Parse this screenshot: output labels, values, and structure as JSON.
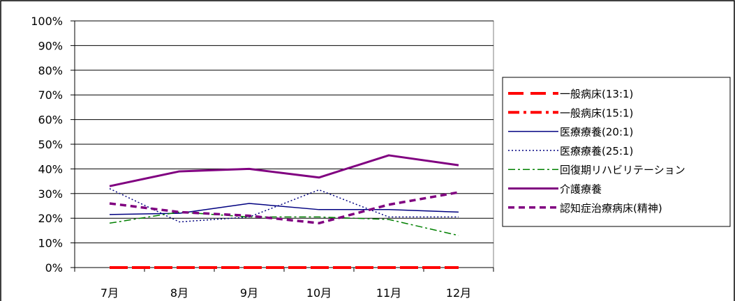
{
  "chart_data": {
    "type": "line",
    "categories": [
      "7月",
      "8月",
      "9月",
      "10月",
      "11月",
      "12月"
    ],
    "ylim": [
      0,
      100
    ],
    "ytick_labels": [
      "0%",
      "10%",
      "20%",
      "30%",
      "40%",
      "50%",
      "60%",
      "70%",
      "80%",
      "90%",
      "100%"
    ],
    "grid": true,
    "legend_position": "right",
    "series": [
      {
        "name": "一般病床(13:1)",
        "values": [
          0,
          0,
          0,
          0,
          0,
          0
        ],
        "color": "#ff0000",
        "style": "long-dash",
        "width": 4
      },
      {
        "name": "一般病床(15:1)",
        "values": [
          0,
          0,
          0,
          0,
          0,
          0
        ],
        "color": "#ff0000",
        "style": "dash-dot",
        "width": 4
      },
      {
        "name": "医療療養(20:1)",
        "values": [
          21.5,
          22,
          26,
          23.5,
          23.5,
          22.5
        ],
        "color": "#000080",
        "style": "solid",
        "width": 1.5
      },
      {
        "name": "医療療養(25:1)",
        "values": [
          32,
          18.5,
          20.5,
          31.5,
          20.5,
          20.5
        ],
        "color": "#000080",
        "style": "dotted",
        "width": 1.5
      },
      {
        "name": "回復期リハビリテーション",
        "values": [
          18,
          22.5,
          20.5,
          20.5,
          19.5,
          13
        ],
        "color": "#008000",
        "style": "dash-dot",
        "width": 1.5
      },
      {
        "name": "介護療養",
        "values": [
          33,
          39,
          40,
          36.5,
          45.5,
          41.5
        ],
        "color": "#800080",
        "style": "solid",
        "width": 3
      },
      {
        "name": "認知症治療病床(精神)",
        "values": [
          26,
          22.5,
          21,
          18,
          25.5,
          30.5
        ],
        "color": "#800080",
        "style": "dashed",
        "width": 3.5
      }
    ]
  }
}
